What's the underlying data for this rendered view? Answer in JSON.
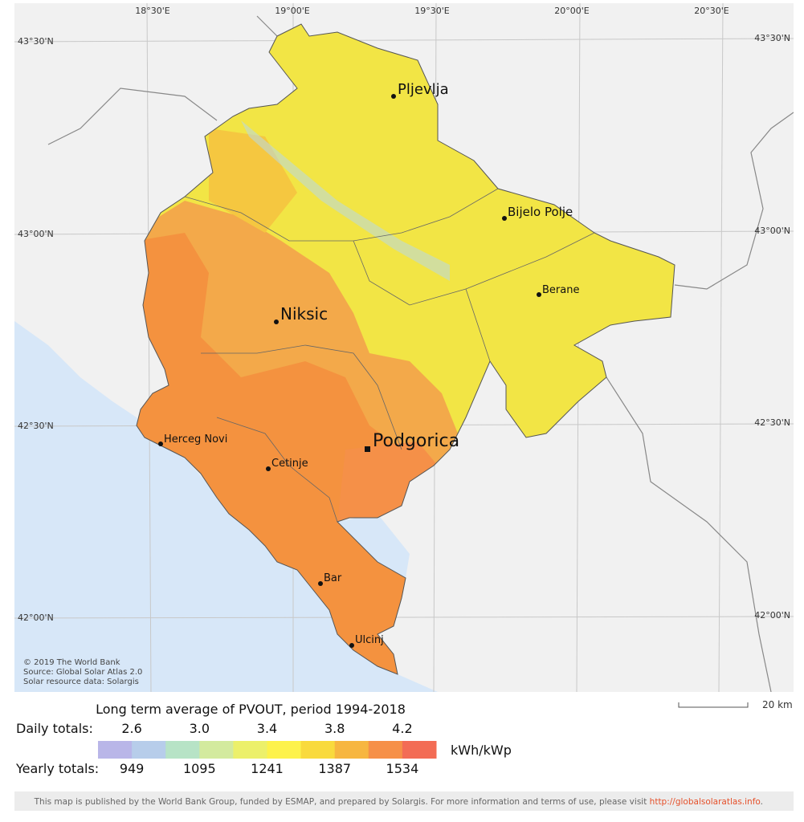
{
  "map": {
    "longitude_labels": [
      "18°30'E",
      "19°00'E",
      "19°30'E",
      "20°00'E",
      "20°30'E"
    ],
    "latitude_labels_left": [
      "43°30'N",
      "43°00'N",
      "42°30'N",
      "42°00'N"
    ],
    "latitude_labels_right": [
      "43°30'N",
      "43°00'N",
      "42°30'N",
      "42°00'N"
    ],
    "cities": [
      "Pljevlja",
      "Bijelo Polje",
      "Berane",
      "Niksic",
      "Podgorica",
      "Herceg Novi",
      "Cetinje",
      "Bar",
      "Ulcinj"
    ],
    "credits": [
      "© 2019 The World Bank",
      "Source: Global Solar Atlas 2.0",
      "Solar resource data: Solargis"
    ],
    "scale_label": "20 km"
  },
  "legend": {
    "title": "Long term average of PVOUT, period 1994-2018",
    "daily_label": "Daily totals:",
    "daily_values": [
      "2.6",
      "3.0",
      "3.4",
      "3.8",
      "4.2"
    ],
    "unit": "kWh/kWp",
    "yearly_label": "Yearly totals:",
    "yearly_values": [
      "949",
      "1095",
      "1241",
      "1387",
      "1534"
    ],
    "colors": [
      "#b9b6e8",
      "#b7cdea",
      "#b7e3c6",
      "#d3ea9e",
      "#ecf06a",
      "#fdf24b",
      "#f9da3d",
      "#f7b640",
      "#f69048",
      "#f36c55"
    ]
  },
  "footer": {
    "text": "This map is published by the World Bank Group, funded by ESMAP, and prepared by Solargis. For more information and terms of use, please visit ",
    "link": "http://globalsolaratlas.info",
    "text_after": "."
  }
}
